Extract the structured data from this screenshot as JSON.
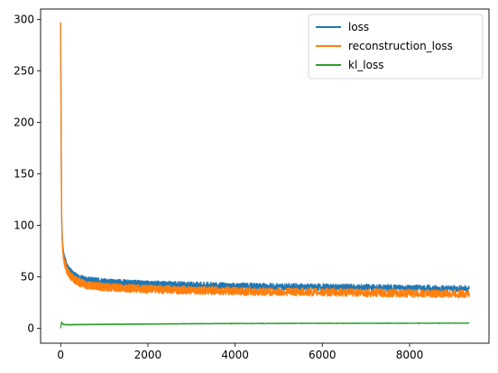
{
  "chart_data": {
    "type": "line",
    "title": "",
    "xlabel": "",
    "ylabel": "",
    "xlim": [
      -460,
      9820
    ],
    "ylim": [
      -14.5,
      310
    ],
    "x_ticks": [
      0,
      2000,
      4000,
      6000,
      8000
    ],
    "y_ticks": [
      0,
      50,
      100,
      150,
      200,
      250,
      300
    ],
    "grid": false,
    "legend_position": "upper-right",
    "series": [
      {
        "name": "loss",
        "color": "#1f77b4",
        "x": [
          0,
          10,
          20,
          30,
          50,
          75,
          100,
          150,
          200,
          300,
          400,
          600,
          800,
          1000,
          1500,
          2000,
          3000,
          4000,
          5000,
          6000,
          7000,
          8000,
          9000,
          9370
        ],
        "values": [
          297,
          200,
          120,
          95,
          78,
          70,
          66,
          60,
          56,
          52,
          49,
          47,
          46,
          45,
          44,
          43,
          42,
          41,
          40.5,
          40,
          39.5,
          39,
          38.5,
          38.5
        ]
      },
      {
        "name": "reconstruction_loss",
        "color": "#ff7f0e",
        "x": [
          0,
          10,
          20,
          30,
          50,
          75,
          100,
          150,
          200,
          300,
          400,
          600,
          800,
          1000,
          1500,
          2000,
          3000,
          4000,
          5000,
          6000,
          7000,
          8000,
          9000,
          9370
        ],
        "values": [
          297,
          198,
          118,
          92,
          75,
          66,
          62,
          56,
          52,
          48,
          45,
          42,
          41,
          40,
          39,
          38,
          37,
          36,
          35.5,
          35,
          34.5,
          34,
          33.5,
          33.5
        ]
      },
      {
        "name": "kl_loss",
        "color": "#2ca02c",
        "x": [
          0,
          20,
          50,
          100,
          200,
          500,
          1000,
          2000,
          3000,
          4000,
          6000,
          8000,
          9370
        ],
        "values": [
          0,
          6,
          4,
          3.5,
          3.4,
          3.6,
          3.8,
          4.1,
          4.4,
          4.6,
          4.8,
          4.9,
          5.0
        ]
      }
    ]
  }
}
